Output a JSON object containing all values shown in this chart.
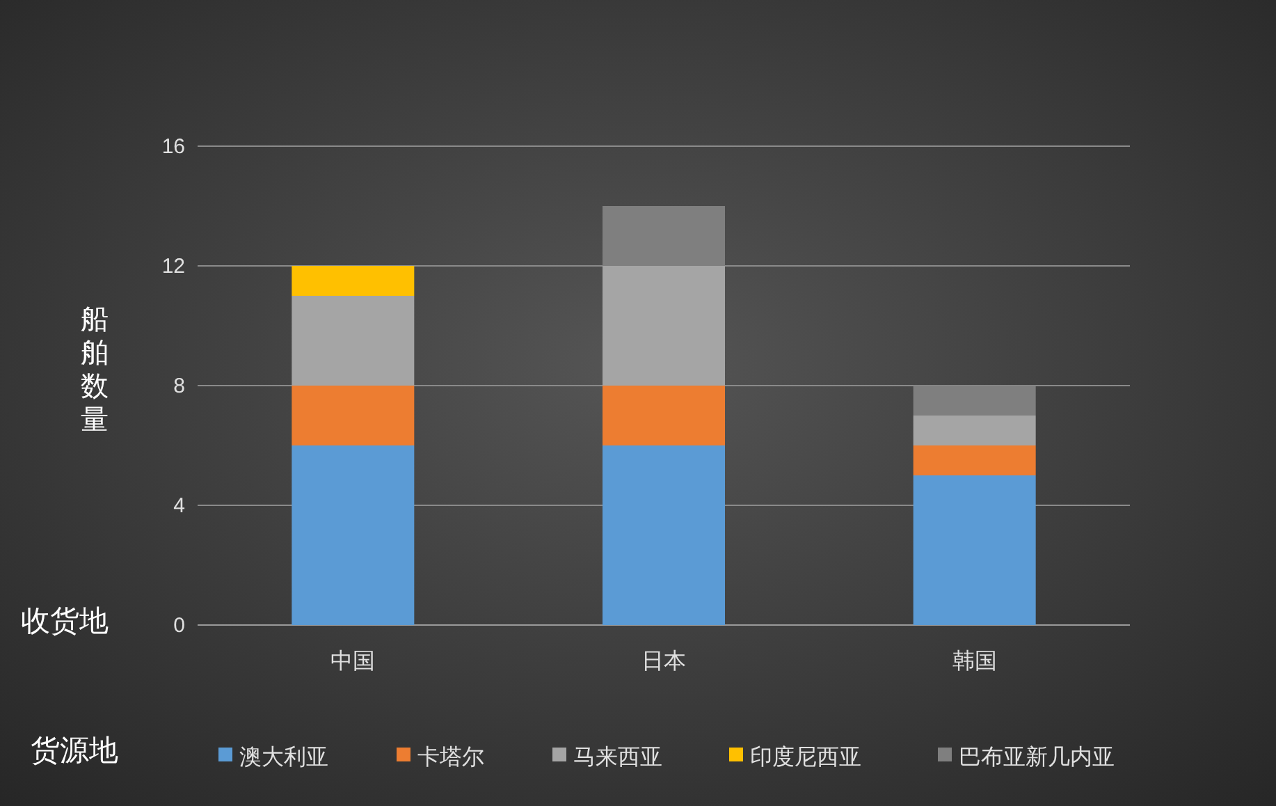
{
  "chart_data": {
    "type": "bar",
    "stacked": true,
    "categories": [
      "中国",
      "日本",
      "韩国"
    ],
    "series": [
      {
        "name": "澳大利亚",
        "color": "#5b9bd5",
        "values": [
          6,
          6,
          5
        ]
      },
      {
        "name": "卡塔尔",
        "color": "#ed7d31",
        "values": [
          2,
          2,
          1
        ]
      },
      {
        "name": "马来西亚",
        "color": "#a5a5a5",
        "values": [
          3,
          4,
          1
        ]
      },
      {
        "name": "印度尼西亚",
        "color": "#ffc000",
        "values": [
          1,
          0,
          0
        ]
      },
      {
        "name": "巴布亚新几内亚",
        "color": "#7f7f7f",
        "values": [
          0,
          2,
          1
        ]
      }
    ],
    "ylabel": "船舶数量",
    "xlabel": "收货地",
    "legend_title": "货源地",
    "ylim": [
      0,
      16
    ],
    "yticks": [
      0,
      4,
      8,
      12,
      16
    ],
    "grid": "y",
    "legend": "bottom"
  }
}
